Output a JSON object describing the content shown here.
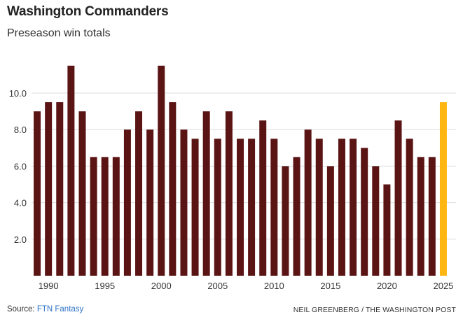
{
  "chart_data": {
    "type": "bar",
    "title": "Washington Commanders",
    "subtitle": "Preseason win totals",
    "xlabel": "",
    "ylabel": "",
    "x": [
      1989,
      1990,
      1991,
      1992,
      1993,
      1994,
      1995,
      1996,
      1997,
      1998,
      1999,
      2000,
      2001,
      2002,
      2003,
      2004,
      2005,
      2006,
      2007,
      2008,
      2009,
      2010,
      2011,
      2012,
      2013,
      2014,
      2015,
      2016,
      2017,
      2018,
      2019,
      2020,
      2021,
      2022,
      2023,
      2024,
      2025
    ],
    "values": [
      9.0,
      9.5,
      9.5,
      11.5,
      9.0,
      6.5,
      6.5,
      6.5,
      8.0,
      9.0,
      8.0,
      11.5,
      9.5,
      8.0,
      7.5,
      9.0,
      7.5,
      9.0,
      7.5,
      7.5,
      8.5,
      7.5,
      6.0,
      6.5,
      8.0,
      7.5,
      6.0,
      7.5,
      7.5,
      7.0,
      6.0,
      5.0,
      8.5,
      7.5,
      6.5,
      6.5,
      9.5
    ],
    "highlight_x": 2025,
    "x_tick_labels": [
      "1990",
      "1995",
      "2000",
      "2005",
      "2010",
      "2015",
      "2020",
      "2025"
    ],
    "x_tick_values": [
      1990,
      1995,
      2000,
      2005,
      2010,
      2015,
      2020,
      2025
    ],
    "y_tick_labels": [
      "2.0",
      "4.0",
      "6.0",
      "8.0",
      "10.0"
    ],
    "y_tick_values": [
      2,
      4,
      6,
      8,
      10
    ],
    "ylim": [
      0,
      12
    ],
    "grid": true,
    "bar_color": "#5a1414",
    "highlight_color": "#ffb612",
    "grid_color": "#dddddd"
  },
  "footer": {
    "source_prefix": "Source: ",
    "source_name": "FTN Fantasy",
    "credit": "NEIL GREENBERG / THE WASHINGTON POST"
  }
}
